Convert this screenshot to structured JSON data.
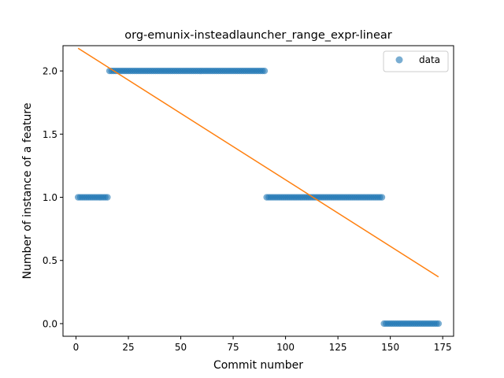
{
  "chart_data": {
    "type": "scatter",
    "title": "org-emunix-insteadlauncher_range_expr-linear",
    "xlabel": "Commit number",
    "ylabel": "Number of instance of a feature",
    "xlim": [
      -6.2,
      180.2
    ],
    "ylim": [
      -0.1,
      2.2
    ],
    "xticks": [
      0,
      25,
      50,
      75,
      100,
      125,
      150,
      175
    ],
    "yticks": [
      0.0,
      0.5,
      1.0,
      1.5,
      2.0
    ],
    "xtick_labels": [
      "0",
      "25",
      "50",
      "75",
      "100",
      "125",
      "150",
      "175"
    ],
    "ytick_labels": [
      "0.0",
      "0.5",
      "1.0",
      "1.5",
      "2.0"
    ],
    "legend_position": "top-right",
    "grid": false,
    "series": [
      {
        "name": "data",
        "kind": "scatter",
        "color": "#1f77b4",
        "segments": [
          {
            "x_start": 1,
            "x_end": 15,
            "y": 1
          },
          {
            "x_start": 16,
            "x_end": 90,
            "y": 2
          },
          {
            "x_start": 91,
            "x_end": 146,
            "y": 1
          },
          {
            "x_start": 147,
            "x_end": 173,
            "y": 0
          }
        ]
      },
      {
        "kind": "line",
        "color": "#ff7f0e",
        "x": [
          1,
          173
        ],
        "y": [
          2.18,
          0.37
        ]
      }
    ]
  }
}
